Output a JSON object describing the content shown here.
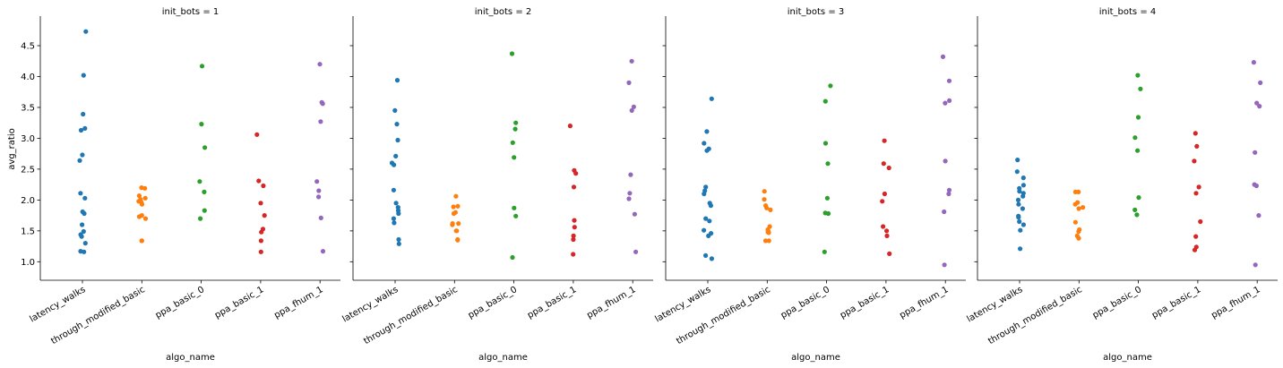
{
  "chart_data": {
    "type": "scatter",
    "kind": "strip plot (faceted)",
    "ylabel": "avg_ratio",
    "xlabel": "algo_name",
    "ylim": [
      0.7,
      4.95
    ],
    "yticks": [
      "1.0",
      "1.5",
      "2.0",
      "2.5",
      "3.0",
      "3.5",
      "4.0",
      "4.5"
    ],
    "categories": [
      "latency_walks",
      "through_modified_basic",
      "ppa_basic_0",
      "ppa_basic_1",
      "ppa_fhum_1"
    ],
    "colors": [
      "#1f77b4",
      "#ff7f0e",
      "#2ca02c",
      "#d62728",
      "#9467bd"
    ],
    "grid": false,
    "legend": "none",
    "facets": [
      {
        "title": "init_bots = 1",
        "series": [
          {
            "category": "latency_walks",
            "values": [
              4.73,
              4.02,
              3.39,
              3.16,
              3.13,
              2.73,
              2.64,
              2.11,
              2.03,
              1.81,
              1.78,
              1.6,
              1.49,
              1.44,
              1.41,
              1.3,
              1.17,
              1.16
            ]
          },
          {
            "category": "through_modified_basic",
            "values": [
              2.2,
              2.19,
              2.07,
              2.03,
              2.01,
              1.98,
              1.96,
              1.93,
              1.75,
              1.73,
              1.7,
              1.34,
              1.34
            ]
          },
          {
            "category": "ppa_basic_0",
            "values": [
              4.17,
              3.23,
              2.85,
              2.3,
              2.13,
              1.83,
              1.7
            ]
          },
          {
            "category": "ppa_basic_1",
            "values": [
              3.06,
              2.31,
              2.23,
              1.95,
              1.75,
              1.53,
              1.48,
              1.34,
              1.16
            ]
          },
          {
            "category": "ppa_fhum_1",
            "values": [
              4.2,
              3.58,
              3.56,
              3.27,
              2.3,
              2.15,
              2.05,
              1.71,
              1.17
            ]
          }
        ]
      },
      {
        "title": "init_bots = 2",
        "series": [
          {
            "category": "latency_walks",
            "values": [
              3.94,
              3.45,
              3.23,
              2.97,
              2.71,
              2.6,
              2.57,
              2.16,
              1.95,
              1.88,
              1.83,
              1.78,
              1.7,
              1.63,
              1.36,
              1.29
            ]
          },
          {
            "category": "through_modified_basic",
            "values": [
              2.06,
              1.9,
              1.89,
              1.8,
              1.78,
              1.62,
              1.62,
              1.6,
              1.5,
              1.5,
              1.36,
              1.35
            ]
          },
          {
            "category": "ppa_basic_0",
            "values": [
              4.37,
              3.25,
              3.15,
              2.93,
              2.69,
              1.87,
              1.74,
              1.07
            ]
          },
          {
            "category": "ppa_basic_1",
            "values": [
              3.2,
              2.48,
              2.43,
              2.21,
              1.67,
              1.56,
              1.42,
              1.36,
              1.12
            ]
          },
          {
            "category": "ppa_fhum_1",
            "values": [
              4.25,
              3.9,
              3.51,
              3.45,
              2.41,
              2.11,
              2.02,
              1.77,
              1.16
            ]
          }
        ]
      },
      {
        "title": "init_bots = 3",
        "series": [
          {
            "category": "latency_walks",
            "values": [
              3.64,
              3.11,
              2.92,
              2.83,
              2.8,
              2.21,
              2.15,
              2.1,
              1.95,
              1.91,
              1.7,
              1.66,
              1.51,
              1.46,
              1.42,
              1.1,
              1.05
            ]
          },
          {
            "category": "through_modified_basic",
            "values": [
              2.14,
              2.01,
              1.91,
              1.87,
              1.84,
              1.57,
              1.52,
              1.49,
              1.48,
              1.47,
              1.34,
              1.34
            ]
          },
          {
            "category": "ppa_basic_0",
            "values": [
              3.85,
              3.6,
              2.92,
              2.59,
              2.03,
              1.79,
              1.78,
              1.16
            ]
          },
          {
            "category": "ppa_basic_1",
            "values": [
              2.96,
              2.59,
              2.52,
              2.1,
              1.98,
              1.57,
              1.5,
              1.42,
              1.13
            ]
          },
          {
            "category": "ppa_fhum_1",
            "values": [
              4.32,
              3.93,
              3.61,
              3.57,
              2.63,
              2.16,
              2.1,
              1.81,
              0.95
            ]
          }
        ]
      },
      {
        "title": "init_bots = 4",
        "series": [
          {
            "category": "latency_walks",
            "values": [
              2.65,
              2.46,
              2.36,
              2.24,
              2.19,
              2.14,
              2.11,
              2.06,
              2.0,
              1.93,
              1.86,
              1.74,
              1.72,
              1.65,
              1.6,
              1.51,
              1.21
            ]
          },
          {
            "category": "through_modified_basic",
            "values": [
              2.13,
              2.13,
              1.96,
              1.93,
              1.88,
              1.86,
              1.64,
              1.52,
              1.49,
              1.42,
              1.38
            ]
          },
          {
            "category": "ppa_basic_0",
            "values": [
              4.02,
              3.8,
              3.34,
              3.01,
              2.8,
              2.04,
              1.84,
              1.76
            ]
          },
          {
            "category": "ppa_basic_1",
            "values": [
              3.08,
              2.87,
              2.63,
              2.21,
              2.11,
              1.65,
              1.41,
              1.24,
              1.19
            ]
          },
          {
            "category": "ppa_fhum_1",
            "values": [
              4.23,
              3.9,
              3.57,
              3.52,
              2.77,
              2.25,
              2.23,
              1.75,
              0.95
            ]
          }
        ]
      }
    ]
  }
}
